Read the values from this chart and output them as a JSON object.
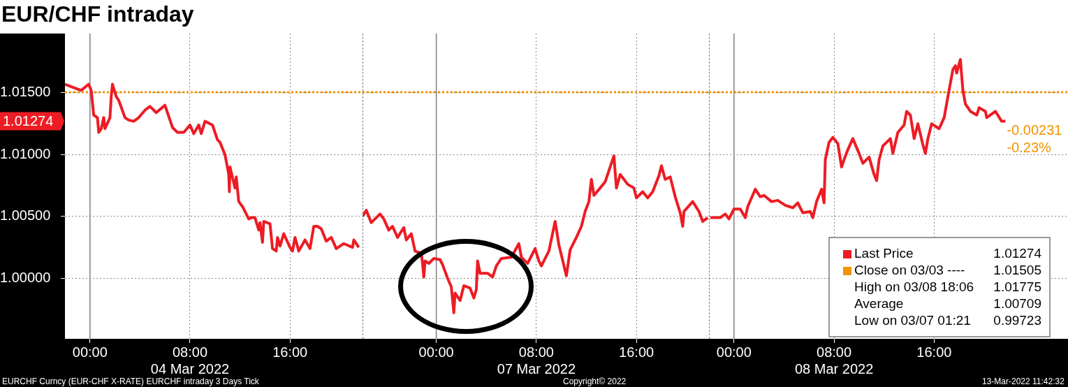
{
  "chart_data": [
    {
      "type": "line",
      "title": "EUR/CHF intraday",
      "x": [
        -2.0,
        -1.5,
        -0.7,
        -0.1,
        0.1,
        0.3,
        0.6,
        0.7,
        0.9,
        1.1,
        1.2,
        1.6,
        1.7,
        1.8,
        2.1,
        2.3,
        2.8,
        3.1,
        3.5,
        3.9,
        4.4,
        4.8,
        5.3,
        6.0,
        6.3,
        6.6,
        7.0,
        7.5,
        8.0,
        8.3,
        8.7,
        8.9,
        9.2,
        9.8,
        10.2,
        10.4,
        10.8,
        11.1,
        11.15,
        11.2,
        11.6,
        11.7,
        11.9,
        12.2,
        12.7,
        12.9,
        13.2,
        13.5,
        13.6,
        13.8,
        13.9,
        14.4,
        14.6,
        14.9,
        15.0,
        15.2,
        15.5,
        16.0,
        16.2,
        16.4,
        16.7,
        17.2,
        17.6,
        17.9,
        18.2,
        18.5,
        18.9,
        19.3,
        19.7,
        20.3,
        21.0,
        21.1,
        21.5
      ],
      "series": [
        {
          "color": "#ed1c24",
          "values": [
            1.0157,
            1.0155,
            1.0152,
            1.0157,
            1.0152,
            1.0132,
            1.013,
            1.0118,
            1.0121,
            1.013,
            1.0121,
            1.013,
            1.0147,
            1.0157,
            1.0147,
            1.0144,
            1.013,
            1.0128,
            1.0127,
            1.013,
            1.0136,
            1.0139,
            1.0134,
            1.014,
            1.0131,
            1.0122,
            1.0118,
            1.0118,
            1.0124,
            1.0117,
            1.0124,
            1.0117,
            1.0127,
            1.0124,
            1.0112,
            1.011,
            1.01,
            1.0084,
            1.007,
            1.009,
            1.0073,
            1.0082,
            1.0062,
            1.0058,
            1.0048,
            1.0049,
            1.0049,
            1.0039,
            1.0045,
            1.0029,
            1.0046,
            1.0044,
            1.0024,
            1.0022,
            1.0033,
            1.0026,
            1.0036,
            1.0025,
            1.0022,
            1.0033,
            1.0022,
            1.0031,
            1.0024,
            1.0042,
            1.0042,
            1.004,
            1.003,
            1.0033,
            1.0024,
            1.0028,
            1.0025,
            1.0031,
            1.0025
          ]
        }
      ],
      "xlim": [
        -2,
        21.8
      ],
      "xticks": [
        {
          "value": 0,
          "label": "00:00"
        },
        {
          "value": 8,
          "label": "08:00\n04 Mar 2022"
        },
        {
          "value": 16,
          "label": "16:00"
        }
      ],
      "ylim": [
        0.9951,
        1.0198
      ],
      "yticks": [
        {
          "value": 1,
          "label": "1.00000"
        },
        {
          "value": 1.005,
          "label": "1.00500"
        },
        {
          "value": 1.01,
          "label": "1.01000"
        },
        {
          "value": 1.015,
          "label": "1.01500"
        }
      ],
      "grid": true,
      "ref_lines": [
        {
          "axis": "x",
          "value": 0,
          "color": "#808080",
          "line_style": "solid"
        },
        {
          "axis": "y",
          "value": 1.01505,
          "color": "#f29400",
          "line_style": "dotted"
        }
      ],
      "annotations": [
        "1.01274",
        "EURCHF Curncy (EUR-CHF X-RATE) EURCHF intraday 3 Days  Tick"
      ]
    },
    {
      "type": "line",
      "x": [
        -5.9,
        -5.6,
        -5.2,
        -4.8,
        -4.5,
        -4.2,
        -3.8,
        -3.5,
        -3.1,
        -2.6,
        -2.4,
        -2.0,
        -1.7,
        -1.2,
        -1.1,
        -1.0,
        -0.9,
        -0.6,
        -0.2,
        0.3,
        0.5,
        0.9,
        1.2,
        1.4,
        1.5,
        1.9,
        2.2,
        2.7,
        3.0,
        3.2,
        3.3,
        3.5,
        4.1,
        4.5,
        4.8,
        5.2,
        6.0,
        6.6,
        6.8,
        7.3,
        7.9,
        8.2,
        8.4,
        9.0,
        9.5,
        9.8,
        10.4,
        10.7,
        11.2,
        11.6,
        11.9,
        12.2,
        12.4,
        12.6,
        13.1,
        13.5,
        13.8,
        14.2,
        14.4,
        14.7,
        15.3,
        15.8,
        16.0,
        16.5,
        16.9,
        17.3,
        17.8,
        18.0,
        18.3,
        18.7,
        19.1,
        19.5,
        19.7,
        19.8,
        20.5,
        21.0,
        21.3,
        21.7
      ],
      "series": [
        {
          "color": "#ed1c24",
          "values": [
            1.005,
            1.0055,
            1.0045,
            1.0049,
            1.0052,
            1.0048,
            1.0039,
            1.0042,
            1.0033,
            1.0041,
            1.0031,
            1.0036,
            1.0022,
            1.002,
            1.0012,
            1.0001,
            1.0014,
            1.0012,
            1.0016,
            1.0015,
            1.0011,
            1.0,
            0.9993,
            0.9972,
            0.9988,
            0.9982,
            0.9994,
            0.9992,
            0.9984,
            0.9991,
            1.0014,
            1.0004,
            1.0004,
            1.0001,
            1.001,
            1.0016,
            1.0017,
            1.0028,
            1.0017,
            1.0012,
            1.0024,
            1.0014,
            1.001,
            1.0022,
            1.0046,
            1.0027,
            1.0002,
            1.0023,
            1.0033,
            1.0042,
            1.0054,
            1.0062,
            1.008,
            1.0067,
            1.0073,
            1.0078,
            1.0087,
            1.0099,
            1.0073,
            1.0084,
            1.0076,
            1.0073,
            1.0065,
            1.007,
            1.0065,
            1.007,
            1.0083,
            1.0091,
            1.008,
            1.0082,
            1.0066,
            1.0053,
            1.0042,
            1.0054,
            1.0062,
            1.0054,
            1.0046,
            1.0049
          ]
        }
      ],
      "xlim": [
        -5.9,
        21.8
      ],
      "xticks": [
        {
          "value": 0,
          "label": "00:00"
        },
        {
          "value": 8,
          "label": "08:00\n07 Mar 2022"
        },
        {
          "value": 16,
          "label": "16:00"
        }
      ],
      "ylim": [
        0.9951,
        1.0198
      ],
      "yticks": [
        1,
        1.005,
        1.01,
        1.015
      ],
      "tick_labels": "x",
      "grid": true,
      "ref_lines": [
        {
          "axis": "x",
          "value": 0,
          "color": "#808080",
          "line_style": "solid"
        },
        {
          "axis": "y",
          "value": 1.01505,
          "color": "#f29400",
          "line_style": "dotted"
        }
      ],
      "annotations": [
        "Copyright© 2022"
      ]
    },
    {
      "type": "line",
      "x": [
        -1.9,
        -1.5,
        -1.1,
        -0.7,
        -0.4,
        0.0,
        0.5,
        0.9,
        1.1,
        1.7,
        2.1,
        2.4,
        3.0,
        3.5,
        4.1,
        4.7,
        5.1,
        5.5,
        6.1,
        6.3,
        6.6,
        7.0,
        7.2,
        7.3,
        7.6,
        7.9,
        8.3,
        8.6,
        8.8,
        9.1,
        9.5,
        10.0,
        10.3,
        10.8,
        11.2,
        11.4,
        11.6,
        11.9,
        12.5,
        12.7,
        13.1,
        13.6,
        13.8,
        14.1,
        14.4,
        14.7,
        15.1,
        15.3,
        15.5,
        15.8,
        16.4,
        16.8,
        17.1,
        17.3,
        17.5,
        17.7,
        17.8,
        18.1,
        18.2,
        18.3,
        18.5,
        18.9,
        19.4,
        19.6,
        20.1,
        20.2,
        20.9,
        21.4,
        21.7
      ],
      "series": [
        {
          "name": "Last Price",
          "color": "#ed1c24",
          "values": [
            1.0049,
            1.0049,
            1.0049,
            1.0052,
            1.0048,
            1.0056,
            1.0056,
            1.0049,
            1.0058,
            1.0072,
            1.0066,
            1.0067,
            1.0062,
            1.0063,
            1.0059,
            1.0057,
            1.0061,
            1.0053,
            1.0054,
            1.0049,
            1.0062,
            1.0072,
            1.0061,
            1.0096,
            1.011,
            1.0114,
            1.0109,
            1.009,
            1.0096,
            1.0104,
            1.0113,
            1.0101,
            1.0093,
            1.0098,
            1.0084,
            1.0079,
            1.0096,
            1.0107,
            1.0113,
            1.0101,
            1.0118,
            1.0124,
            1.0135,
            1.0132,
            1.0113,
            1.0125,
            1.0108,
            1.0101,
            1.0113,
            1.0125,
            1.0121,
            1.013,
            1.0147,
            1.0158,
            1.0169,
            1.0172,
            1.0166,
            1.0177,
            1.0164,
            1.0152,
            1.0141,
            1.0135,
            1.0132,
            1.0138,
            1.0135,
            1.013,
            1.0135,
            1.0127,
            1.0127
          ]
        }
      ],
      "xlim": [
        -2,
        26.7
      ],
      "xticks": [
        {
          "value": 0,
          "label": "00:00"
        },
        {
          "value": 8,
          "label": "08:00\n08 Mar 2022"
        },
        {
          "value": 16,
          "label": "16:00"
        }
      ],
      "ylim": [
        0.9951,
        1.0198
      ],
      "yticks": [
        1,
        1.005,
        1.01,
        1.015
      ],
      "tick_labels": "x",
      "grid": true,
      "legend": "bottom right",
      "ref_lines": [
        {
          "axis": "x",
          "value": 0,
          "color": "#808080",
          "line_style": "solid"
        },
        {
          "axis": "y",
          "value": 1.01505,
          "label": "Close on 03/03 ----",
          "color": "#f29400",
          "line_style": "dotted"
        }
      ],
      "annotations": [
        "-0.00231",
        "-0.23%",
        "1.01274",
        "1.01505",
        "High on 03/08 18:06",
        "1.01775",
        "Average",
        "1.00709",
        "Low on 03/07 01:21",
        "0.99723",
        "13-Mar-2022 11:42:32"
      ]
    }
  ]
}
